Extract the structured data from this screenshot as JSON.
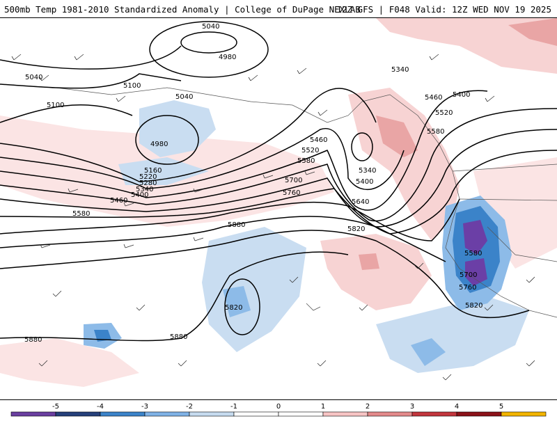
{
  "header": {
    "left_title": "500mb Temp 1981-2010 Standardized Anomaly | College of DuPage NEXLAB",
    "right_title": "12Z GFS | F048 Valid: 12Z WED NOV 19 2025"
  },
  "contour_labels": [
    "5040",
    "4980",
    "5040",
    "5100",
    "5100",
    "5040",
    "4980",
    "5160",
    "5220",
    "5280",
    "5340",
    "5400",
    "5460",
    "5580",
    "5460",
    "5520",
    "5580",
    "5700",
    "5760",
    "5340",
    "5400",
    "5640",
    "5880",
    "5820",
    "5340",
    "5400",
    "5460",
    "5520",
    "5580",
    "5580",
    "5700",
    "5760",
    "5820",
    "5820",
    "5880",
    "5880"
  ],
  "colorbar": {
    "ticks": [
      "-5",
      "-4",
      "-3",
      "-2",
      "-1",
      "0",
      "1",
      "2",
      "3",
      "4",
      "5"
    ],
    "colors": [
      "#6a3fa0",
      "#25407a",
      "#3b83c9",
      "#7fb2e6",
      "#c6dbef",
      "#ffffff",
      "#ffffff",
      "#f7c4c4",
      "#e3898a",
      "#c2363d",
      "#8b1219",
      "#f2b400"
    ]
  },
  "colors": {
    "blue_light": "#c9ddf1",
    "blue_mid": "#5fa3e0",
    "blue_dark": "#2c6ec2",
    "purple": "#6b3fa6",
    "red_light": "#f7d3d3",
    "red_mid": "#e9a5a5"
  }
}
